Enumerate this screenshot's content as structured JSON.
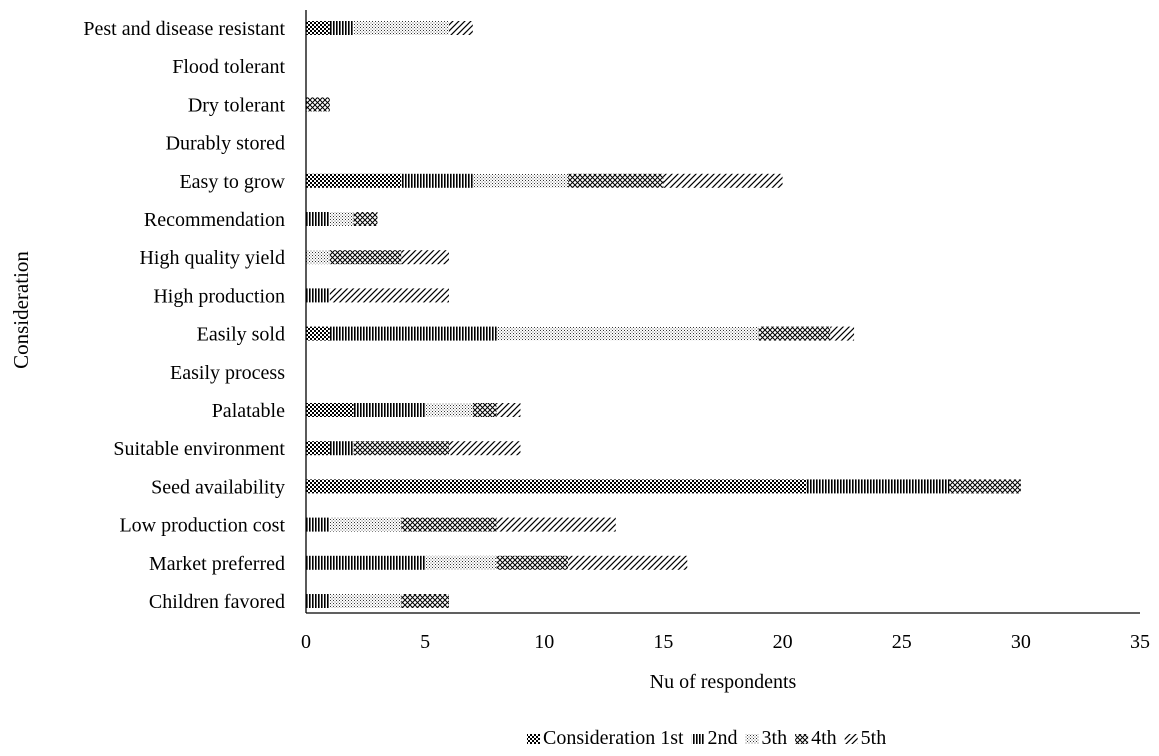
{
  "chart_data": {
    "type": "bar",
    "orientation": "horizontal",
    "stacked": true,
    "categories": [
      "Pest and disease resistant",
      "Flood tolerant",
      "Dry tolerant",
      "Durably stored",
      "Easy to grow",
      "Recommendation",
      "High quality yield",
      "High production",
      "Easily sold",
      "Easily process",
      "Palatable",
      "Suitable environment",
      "Seed availability",
      "Low production cost",
      "Market preferred",
      "Children favored"
    ],
    "series": [
      {
        "name": "Consideration 1st",
        "pattern": "checker",
        "values": [
          1,
          0,
          0,
          0,
          4,
          0,
          0,
          0,
          1,
          0,
          2,
          1,
          21,
          0,
          0,
          0
        ]
      },
      {
        "name": "2nd",
        "pattern": "vertical",
        "values": [
          1,
          0,
          0,
          0,
          3,
          1,
          0,
          1,
          7,
          0,
          3,
          1,
          6,
          1,
          5,
          1
        ]
      },
      {
        "name": "3th",
        "pattern": "dots",
        "values": [
          4,
          0,
          0,
          0,
          4,
          1,
          1,
          0,
          11,
          0,
          2,
          0,
          0,
          3,
          3,
          3
        ]
      },
      {
        "name": "4th",
        "pattern": "diamond",
        "values": [
          0,
          0,
          1,
          0,
          4,
          1,
          3,
          0,
          3,
          0,
          1,
          4,
          3,
          4,
          3,
          2
        ]
      },
      {
        "name": "5th",
        "pattern": "diagonal",
        "values": [
          1,
          0,
          0,
          0,
          5,
          0,
          2,
          5,
          1,
          0,
          1,
          3,
          0,
          5,
          5,
          0
        ]
      }
    ],
    "xlabel": "Nu of respondents",
    "ylabel": "Consideration",
    "xlim": [
      0,
      35
    ],
    "xticks": [
      0,
      5,
      10,
      15,
      20,
      25,
      30,
      35
    ],
    "grid": false,
    "legend_position": "bottom-right"
  }
}
